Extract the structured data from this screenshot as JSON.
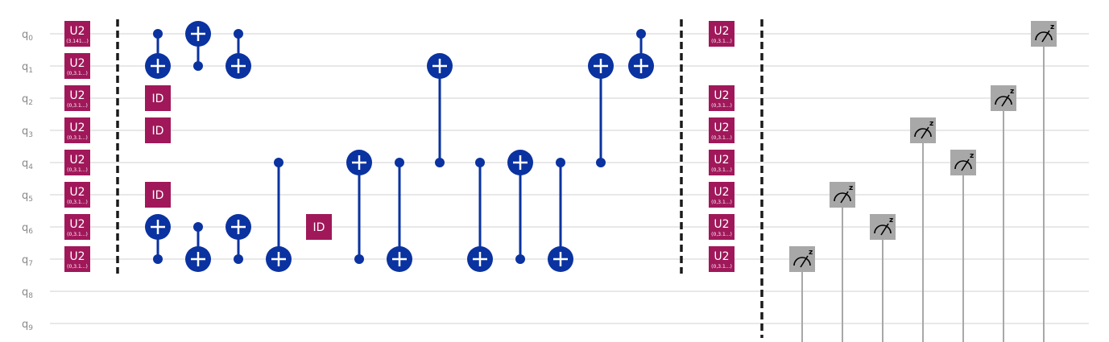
{
  "qubits": [
    {
      "name": "q",
      "index": "0"
    },
    {
      "name": "q",
      "index": "1"
    },
    {
      "name": "q",
      "index": "2"
    },
    {
      "name": "q",
      "index": "3"
    },
    {
      "name": "q",
      "index": "4"
    },
    {
      "name": "q",
      "index": "5"
    },
    {
      "name": "q",
      "index": "6"
    },
    {
      "name": "q",
      "index": "7"
    },
    {
      "name": "q",
      "index": "8"
    },
    {
      "name": "q",
      "index": "9"
    }
  ],
  "u2_col1": [
    {
      "q": 0,
      "label": "U2",
      "param": "(3.141...)"
    },
    {
      "q": 1,
      "label": "U2",
      "param": "(0,3.1...)"
    },
    {
      "q": 2,
      "label": "U2",
      "param": "(0,3.1...)"
    },
    {
      "q": 3,
      "label": "U2",
      "param": "(0,3.1...)"
    },
    {
      "q": 4,
      "label": "U2",
      "param": "(0,3.1...)"
    },
    {
      "q": 5,
      "label": "U2",
      "param": "(0,3.1...)"
    },
    {
      "q": 6,
      "label": "U2",
      "param": "(0,3.1...)"
    },
    {
      "q": 7,
      "label": "U2",
      "param": "(0,3.1...)"
    }
  ],
  "u2_col2": [
    {
      "q": 0,
      "label": "U2",
      "param": "(0,3.1...)"
    },
    {
      "q": 2,
      "label": "U2",
      "param": "(0,3.1...)"
    },
    {
      "q": 3,
      "label": "U2",
      "param": "(0,3.1...)"
    },
    {
      "q": 4,
      "label": "U2",
      "param": "(0,3.1...)"
    },
    {
      "q": 5,
      "label": "U2",
      "param": "(0,3.1...)"
    },
    {
      "q": 6,
      "label": "U2",
      "param": "(0,3.1...)"
    },
    {
      "q": 7,
      "label": "U2",
      "param": "(0,3.1...)"
    }
  ],
  "id_gates": [
    {
      "q": 2,
      "col": 0,
      "label": "ID"
    },
    {
      "q": 3,
      "col": 0,
      "label": "ID"
    },
    {
      "q": 5,
      "col": 0,
      "label": "ID"
    },
    {
      "q": 6,
      "col": 4,
      "label": "ID"
    }
  ],
  "cx_gates": [
    {
      "col": 0,
      "control": 0,
      "target": 1
    },
    {
      "col": 0,
      "control": 7,
      "target": 6
    },
    {
      "col": 1,
      "control": 1,
      "target": 0
    },
    {
      "col": 1,
      "control": 6,
      "target": 7
    },
    {
      "col": 2,
      "control": 0,
      "target": 1
    },
    {
      "col": 2,
      "control": 7,
      "target": 6
    },
    {
      "col": 3,
      "control": 4,
      "target": 7
    },
    {
      "col": 5,
      "control": 7,
      "target": 4
    },
    {
      "col": 6,
      "control": 4,
      "target": 7
    },
    {
      "col": 7,
      "control": 4,
      "target": 1
    },
    {
      "col": 8,
      "control": 4,
      "target": 7
    },
    {
      "col": 9,
      "control": 7,
      "target": 4
    },
    {
      "col": 10,
      "control": 4,
      "target": 7
    },
    {
      "col": 11,
      "control": 4,
      "target": 1
    },
    {
      "col": 12,
      "control": 0,
      "target": 1
    }
  ],
  "measurements": [
    {
      "q": 7,
      "basis": "z"
    },
    {
      "q": 5,
      "basis": "z"
    },
    {
      "q": 6,
      "basis": "z"
    },
    {
      "q": 3,
      "basis": "z"
    },
    {
      "q": 4,
      "basis": "z"
    },
    {
      "q": 2,
      "basis": "z"
    },
    {
      "q": 0,
      "basis": "z"
    }
  ],
  "colors": {
    "u2_fill": "#a0185a",
    "id_fill": "#a0185a",
    "cx_fill": "#0a32a0",
    "measure_fill": "#a8a8a8",
    "wire": "#e0e0e0",
    "barrier": "#1a1a1a",
    "label": "#888888"
  }
}
